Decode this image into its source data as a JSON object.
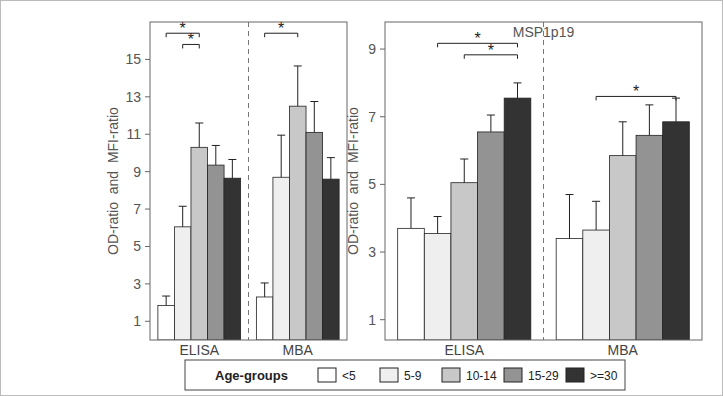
{
  "chart_data": [
    {
      "type": "bar",
      "y_label": "OD-ratio  and  MFI-ratio",
      "categories": [
        "ELISA",
        "MBA"
      ],
      "ylim": [
        0,
        17
      ],
      "yticks": [
        1,
        3,
        5,
        7,
        9,
        11,
        13,
        15
      ],
      "legend": "bottom",
      "legend_title": "Age-groups",
      "series": [
        {
          "name": "<5",
          "color": "#ffffff",
          "values": [
            1.85,
            2.3
          ],
          "errors": [
            0.5,
            0.75
          ]
        },
        {
          "name": "5-9",
          "color": "#efefef",
          "values": [
            6.05,
            8.7
          ],
          "errors": [
            1.1,
            2.25
          ]
        },
        {
          "name": "10-14",
          "color": "#c8c8c8",
          "values": [
            10.3,
            12.5
          ],
          "errors": [
            1.3,
            2.15
          ]
        },
        {
          "name": "15-29",
          "color": "#939393",
          "values": [
            9.35,
            11.1
          ],
          "errors": [
            1.05,
            1.65
          ]
        },
        {
          "name": ">=30",
          "color": "#333333",
          "values": [
            8.65,
            8.6
          ],
          "errors": [
            1.0,
            1.15
          ]
        }
      ],
      "annotations": [
        {
          "text": "*",
          "category": 0,
          "from": 0,
          "to": 2,
          "y": 16.4
        },
        {
          "text": "*",
          "category": 0,
          "from": 1,
          "to": 2,
          "y": 15.8
        },
        {
          "text": "*",
          "category": 1,
          "from": 0,
          "to": 2,
          "y": 16.4
        }
      ]
    },
    {
      "type": "bar",
      "title": "MSP1p19",
      "y_label": "OD-ratio  and  MFI-ratio",
      "categories": [
        "ELISA",
        "MBA"
      ],
      "ylim": [
        0.4,
        9.8
      ],
      "yticks": [
        1,
        3,
        5,
        7,
        9
      ],
      "series": [
        {
          "name": "<5",
          "color": "#ffffff",
          "values": [
            3.7,
            3.4
          ],
          "errors": [
            0.9,
            1.3
          ]
        },
        {
          "name": "5-9",
          "color": "#efefef",
          "values": [
            3.55,
            3.65
          ],
          "errors": [
            0.5,
            0.85
          ]
        },
        {
          "name": "10-14",
          "color": "#c8c8c8",
          "values": [
            5.05,
            5.85
          ],
          "errors": [
            0.7,
            1.0
          ]
        },
        {
          "name": "15-29",
          "color": "#939393",
          "values": [
            6.55,
            6.45
          ],
          "errors": [
            0.5,
            0.9
          ]
        },
        {
          "name": ">=30",
          "color": "#333333",
          "values": [
            7.55,
            6.85
          ],
          "errors": [
            0.45,
            0.7
          ]
        }
      ],
      "annotations": [
        {
          "text": "*",
          "category": 0,
          "from": 1,
          "to": 4,
          "y": 9.17
        },
        {
          "text": "*",
          "category": 0,
          "from": 2,
          "to": 4,
          "y": 8.83
        },
        {
          "text": "*",
          "category": 1,
          "from": 1,
          "to": 4,
          "y": 7.6
        }
      ]
    }
  ]
}
